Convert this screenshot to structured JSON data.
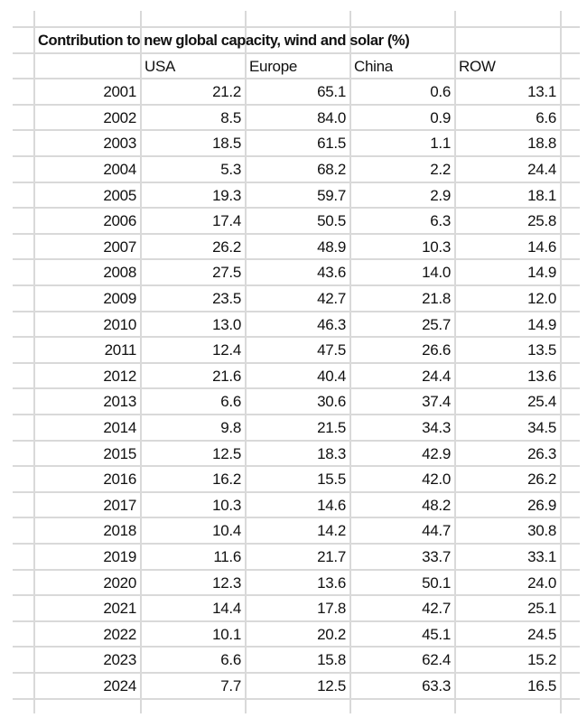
{
  "sheet": {
    "title": "Contribution to new global capacity, wind and solar (%)",
    "headers": [
      "",
      "USA",
      "Europe",
      "China",
      "ROW"
    ],
    "rows": [
      [
        "2001",
        "21.2",
        "65.1",
        "0.6",
        "13.1"
      ],
      [
        "2002",
        "8.5",
        "84.0",
        "0.9",
        "6.6"
      ],
      [
        "2003",
        "18.5",
        "61.5",
        "1.1",
        "18.8"
      ],
      [
        "2004",
        "5.3",
        "68.2",
        "2.2",
        "24.4"
      ],
      [
        "2005",
        "19.3",
        "59.7",
        "2.9",
        "18.1"
      ],
      [
        "2006",
        "17.4",
        "50.5",
        "6.3",
        "25.8"
      ],
      [
        "2007",
        "26.2",
        "48.9",
        "10.3",
        "14.6"
      ],
      [
        "2008",
        "27.5",
        "43.6",
        "14.0",
        "14.9"
      ],
      [
        "2009",
        "23.5",
        "42.7",
        "21.8",
        "12.0"
      ],
      [
        "2010",
        "13.0",
        "46.3",
        "25.7",
        "14.9"
      ],
      [
        "2011",
        "12.4",
        "47.5",
        "26.6",
        "13.5"
      ],
      [
        "2012",
        "21.6",
        "40.4",
        "24.4",
        "13.6"
      ],
      [
        "2013",
        "6.6",
        "30.6",
        "37.4",
        "25.4"
      ],
      [
        "2014",
        "9.8",
        "21.5",
        "34.3",
        "34.5"
      ],
      [
        "2015",
        "12.5",
        "18.3",
        "42.9",
        "26.3"
      ],
      [
        "2016",
        "16.2",
        "15.5",
        "42.0",
        "26.2"
      ],
      [
        "2017",
        "10.3",
        "14.6",
        "48.2",
        "26.9"
      ],
      [
        "2018",
        "10.4",
        "14.2",
        "44.7",
        "30.8"
      ],
      [
        "2019",
        "11.6",
        "21.7",
        "33.7",
        "33.1"
      ],
      [
        "2020",
        "12.3",
        "13.6",
        "50.1",
        "24.0"
      ],
      [
        "2021",
        "14.4",
        "17.8",
        "42.7",
        "25.1"
      ],
      [
        "2022",
        "10.1",
        "20.2",
        "45.1",
        "24.5"
      ],
      [
        "2023",
        "6.6",
        "15.8",
        "62.4",
        "15.2"
      ],
      [
        "2024",
        "7.7",
        "12.5",
        "63.3",
        "16.5"
      ]
    ],
    "gridline_color": "#d9d9d9"
  }
}
